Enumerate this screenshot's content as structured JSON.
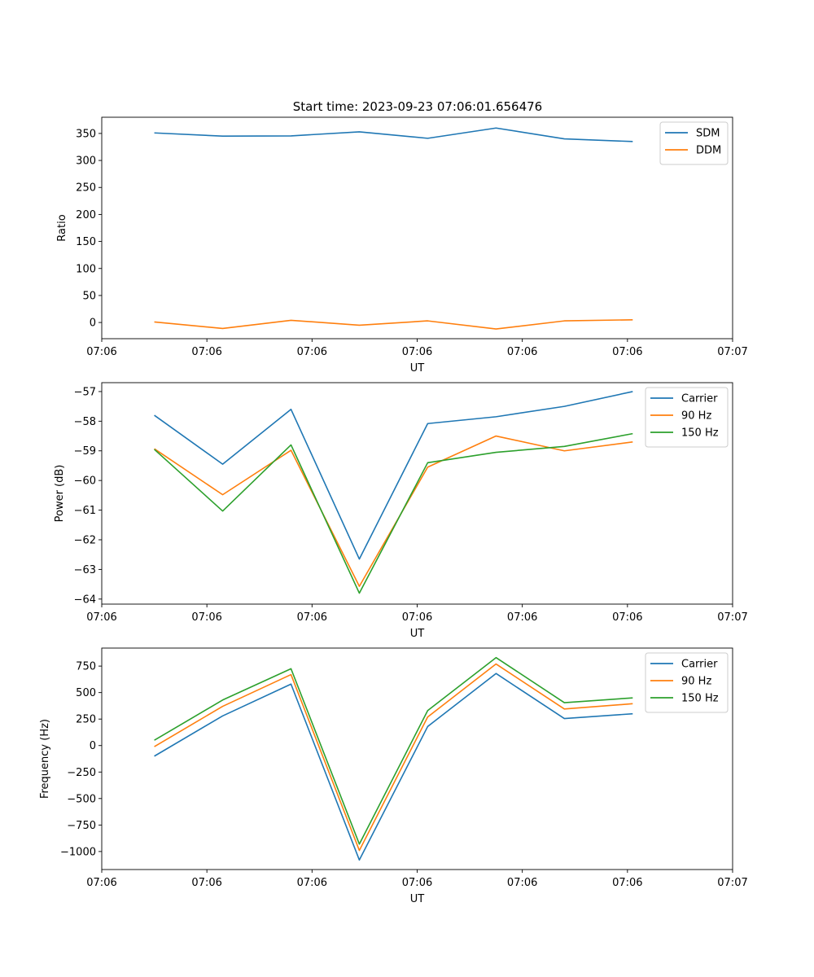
{
  "figure": {
    "title": "Start time: 2023-09-23 07:06:01.656476"
  },
  "chart_data": [
    {
      "type": "line",
      "xlabel": "UT",
      "ylabel": "Ratio",
      "ylim": [
        -30,
        380
      ],
      "yticks": [
        0,
        50,
        100,
        150,
        200,
        250,
        300,
        350
      ],
      "ytick_labels": [
        "0",
        "50",
        "100",
        "150",
        "200",
        "250",
        "300",
        "350"
      ],
      "xlim": [
        0,
        36
      ],
      "xticks": [
        0,
        6,
        12,
        18,
        24,
        30,
        36
      ],
      "xtick_labels": [
        "07:06",
        "07:06",
        "07:06",
        "07:06",
        "07:06",
        "07:06",
        "07:07"
      ],
      "x": [
        3,
        6.9,
        10.8,
        14.7,
        18.6,
        22.5,
        26.4,
        30.3
      ],
      "legend_position": "top-right",
      "series": [
        {
          "name": "SDM",
          "color": "#1f77b4",
          "values": [
            351,
            345,
            345.5,
            353,
            341,
            360,
            340,
            335
          ]
        },
        {
          "name": "DDM",
          "color": "#ff7f0e",
          "values": [
            1,
            -11,
            4,
            -5,
            3,
            -12,
            3,
            5
          ]
        }
      ]
    },
    {
      "type": "line",
      "xlabel": "UT",
      "ylabel": "Power (dB)",
      "ylim": [
        -64.17,
        -56.7
      ],
      "yticks": [
        -64,
        -63,
        -62,
        -61,
        -60,
        -59,
        -58,
        -57
      ],
      "ytick_labels": [
        "−64",
        "−63",
        "−62",
        "−61",
        "−60",
        "−59",
        "−58",
        "−57"
      ],
      "xlim": [
        0,
        36
      ],
      "xticks": [
        0,
        6,
        12,
        18,
        24,
        30,
        36
      ],
      "xtick_labels": [
        "07:06",
        "07:06",
        "07:06",
        "07:06",
        "07:06",
        "07:06",
        "07:07"
      ],
      "x": [
        3,
        6.9,
        10.8,
        14.7,
        18.6,
        22.5,
        26.4,
        30.3
      ],
      "legend_position": "top-right",
      "series": [
        {
          "name": "Carrier",
          "color": "#1f77b4",
          "values": [
            -57.8,
            -59.45,
            -57.6,
            -62.65,
            -58.08,
            -57.85,
            -57.5,
            -57.0
          ]
        },
        {
          "name": "90 Hz",
          "color": "#ff7f0e",
          "values": [
            -58.93,
            -60.48,
            -58.98,
            -63.57,
            -59.55,
            -58.5,
            -59.0,
            -58.7
          ]
        },
        {
          "name": "150 Hz",
          "color": "#2ca02c",
          "values": [
            -58.95,
            -61.03,
            -58.8,
            -63.8,
            -59.4,
            -59.05,
            -58.85,
            -58.42
          ]
        }
      ]
    },
    {
      "type": "line",
      "xlabel": "UT",
      "ylabel": "Frequency (Hz)",
      "ylim": [
        -1170,
        920
      ],
      "yticks": [
        -1000,
        -750,
        -500,
        -250,
        0,
        250,
        500,
        750
      ],
      "ytick_labels": [
        "−1000",
        "−750",
        "−500",
        "−250",
        "0",
        "250",
        "500",
        "750"
      ],
      "xlim": [
        0,
        36
      ],
      "xticks": [
        0,
        6,
        12,
        18,
        24,
        30,
        36
      ],
      "xtick_labels": [
        "07:06",
        "07:06",
        "07:06",
        "07:06",
        "07:06",
        "07:06",
        "07:07"
      ],
      "x": [
        3,
        6.9,
        10.8,
        14.7,
        18.6,
        22.5,
        26.4,
        30.3
      ],
      "legend_position": "top-right",
      "series": [
        {
          "name": "Carrier",
          "color": "#1f77b4",
          "values": [
            -100,
            280,
            580,
            -1080,
            180,
            680,
            255,
            300
          ]
        },
        {
          "name": "90 Hz",
          "color": "#ff7f0e",
          "values": [
            -10,
            370,
            670,
            -990,
            270,
            770,
            345,
            395
          ]
        },
        {
          "name": "150 Hz",
          "color": "#2ca02c",
          "values": [
            50,
            430,
            725,
            -930,
            330,
            830,
            405,
            450
          ]
        }
      ]
    }
  ]
}
